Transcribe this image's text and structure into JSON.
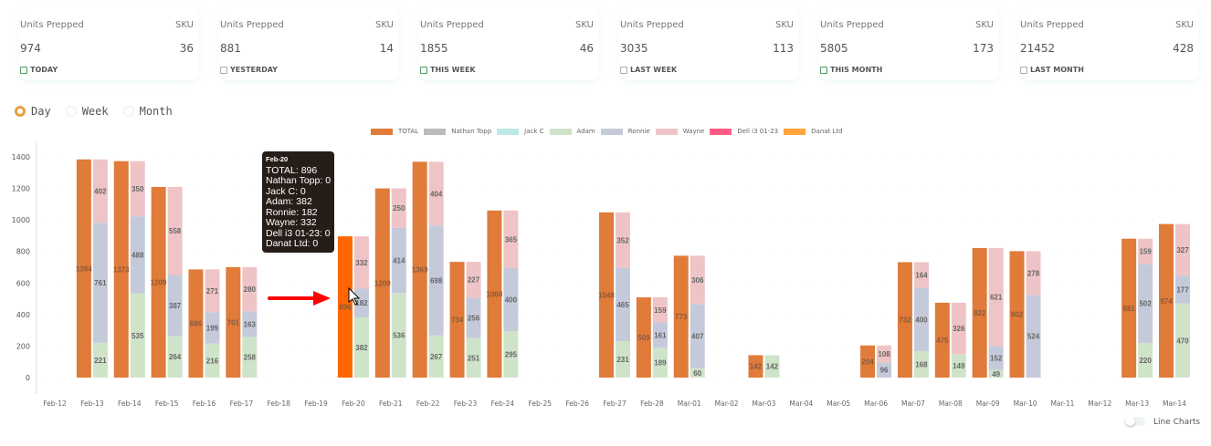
{
  "cards": [
    {
      "units_label": "Units Prepped",
      "sku_label": "SKU",
      "units": "974",
      "sku": "36",
      "period": "TODAY",
      "active": true
    },
    {
      "units_label": "Units Prepped",
      "sku_label": "SKU",
      "units": "881",
      "sku": "14",
      "period": "YESTERDAY",
      "active": false
    },
    {
      "units_label": "Units Prepped",
      "sku_label": "SKU",
      "units": "1855",
      "sku": "46",
      "period": "THIS WEEK",
      "active": true
    },
    {
      "units_label": "Units Prepped",
      "sku_label": "SKU",
      "units": "3035",
      "sku": "113",
      "period": "LAST WEEK",
      "active": false
    },
    {
      "units_label": "Units Prepped",
      "sku_label": "SKU",
      "units": "5805",
      "sku": "173",
      "period": "THIS MONTH",
      "active": true
    },
    {
      "units_label": "Units Prepped",
      "sku_label": "SKU",
      "units": "21452",
      "sku": "428",
      "period": "LAST MONTH",
      "active": false
    }
  ],
  "range_options": [
    {
      "label": "Day",
      "selected": true
    },
    {
      "label": "Week",
      "selected": false
    },
    {
      "label": "Month",
      "selected": false
    }
  ],
  "line_charts_label": "Line Charts",
  "line_charts_on": false,
  "tooltip": {
    "title": "Feb-20",
    "lines": [
      "TOTAL: 896",
      "Nathan Topp: 0",
      "Jack C: 0",
      "Adam: 382",
      "Ronnie: 182",
      "Wayne: 332",
      "Dell i3 01-23: 0",
      "Danat Ltd: 0"
    ]
  },
  "highlight_color": "#ff6600",
  "chart_data": {
    "type": "bar",
    "ylim": [
      0,
      1500
    ],
    "yticks": [
      0,
      200,
      400,
      600,
      800,
      1000,
      1200,
      1400
    ],
    "legend_position": "top-center",
    "categories": [
      "Feb-12",
      "Feb-13",
      "Feb-14",
      "Feb-15",
      "Feb-16",
      "Feb-17",
      "Feb-18",
      "Feb-19",
      "Feb-20",
      "Feb-21",
      "Feb-22",
      "Feb-23",
      "Feb-24",
      "Feb-25",
      "Feb-26",
      "Feb-27",
      "Feb-28",
      "Mar-01",
      "Mar-02",
      "Mar-03",
      "Mar-04",
      "Mar-05",
      "Mar-06",
      "Mar-07",
      "Mar-08",
      "Mar-09",
      "Mar-10",
      "Mar-11",
      "Mar-12",
      "Mar-13",
      "Mar-14"
    ],
    "series": [
      {
        "name": "TOTAL",
        "color": "#e07b39",
        "stack": "total",
        "values": [
          0,
          1384,
          1373,
          1209,
          686,
          701,
          0,
          0,
          896,
          1200,
          1369,
          734,
          1060,
          0,
          0,
          1048,
          509,
          773,
          0,
          142,
          0,
          0,
          204,
          732,
          475,
          822,
          802,
          0,
          0,
          881,
          974
        ]
      },
      {
        "name": "Nathan Topp",
        "color": "#bbbbbb",
        "stack": "people",
        "values": [
          0,
          0,
          0,
          0,
          0,
          0,
          0,
          0,
          0,
          0,
          0,
          0,
          0,
          0,
          0,
          0,
          0,
          0,
          0,
          0,
          0,
          0,
          0,
          0,
          0,
          0,
          0,
          0,
          0,
          0,
          0
        ]
      },
      {
        "name": "Jack C",
        "color": "#bde8e8",
        "stack": "people",
        "values": [
          0,
          0,
          0,
          0,
          0,
          0,
          0,
          0,
          0,
          0,
          0,
          0,
          0,
          0,
          0,
          0,
          0,
          0,
          0,
          0,
          0,
          0,
          0,
          0,
          0,
          0,
          0,
          0,
          0,
          0,
          0
        ]
      },
      {
        "name": "Adam",
        "color": "#cfe3c9",
        "stack": "people",
        "values": [
          0,
          221,
          535,
          264,
          216,
          258,
          0,
          0,
          382,
          536,
          267,
          251,
          295,
          0,
          0,
          231,
          189,
          60,
          0,
          142,
          0,
          0,
          0,
          168,
          149,
          49,
          0,
          0,
          0,
          220,
          470
        ]
      },
      {
        "name": "Ronnie",
        "color": "#c5cadb",
        "stack": "people",
        "values": [
          0,
          761,
          488,
          387,
          199,
          163,
          0,
          0,
          182,
          414,
          698,
          256,
          400,
          0,
          0,
          465,
          161,
          407,
          0,
          0,
          0,
          0,
          96,
          400,
          0,
          152,
          524,
          0,
          0,
          502,
          177
        ]
      },
      {
        "name": "Wayne",
        "color": "#efc4c6",
        "stack": "people",
        "values": [
          0,
          402,
          350,
          558,
          271,
          280,
          0,
          0,
          332,
          250,
          404,
          227,
          365,
          0,
          0,
          352,
          159,
          306,
          0,
          0,
          0,
          0,
          108,
          164,
          326,
          621,
          278,
          0,
          0,
          159,
          327
        ]
      },
      {
        "name": "Dell i3 01-23",
        "color": "#ff5c85",
        "stack": "people",
        "values": [
          0,
          0,
          0,
          0,
          0,
          0,
          0,
          0,
          0,
          0,
          0,
          0,
          0,
          0,
          0,
          0,
          0,
          0,
          0,
          0,
          0,
          0,
          0,
          0,
          0,
          0,
          0,
          0,
          0,
          0,
          0
        ]
      },
      {
        "name": "Danat Ltd",
        "color": "#ffa53a",
        "stack": "people",
        "values": [
          0,
          0,
          0,
          0,
          0,
          0,
          0,
          0,
          0,
          0,
          0,
          0,
          0,
          0,
          0,
          0,
          0,
          0,
          0,
          0,
          0,
          0,
          0,
          0,
          0,
          0,
          0,
          0,
          0,
          0,
          0
        ]
      }
    ],
    "highlighted_category": "Feb-20"
  }
}
